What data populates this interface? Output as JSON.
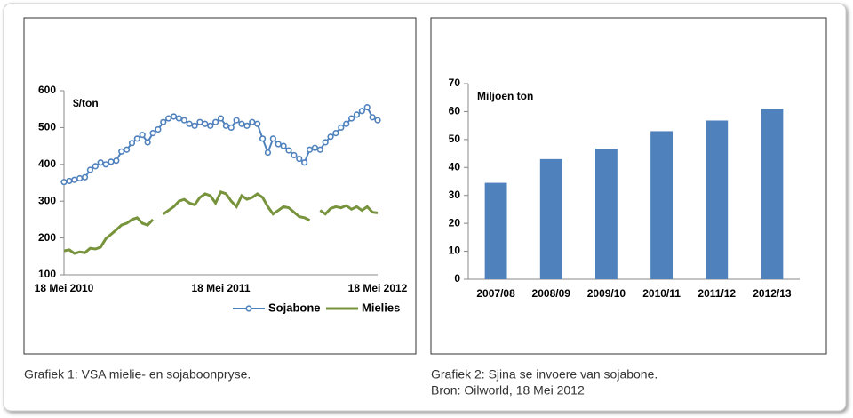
{
  "chart_data": [
    {
      "type": "line",
      "unit_label": "$/ton",
      "caption": "Grafiek 1: VSA mielie- en sojaboonpryse.",
      "categories": [
        "18 Mei 2010",
        null,
        null,
        null,
        null,
        null,
        null,
        null,
        null,
        null,
        null,
        null,
        null,
        null,
        null,
        null,
        null,
        null,
        null,
        null,
        null,
        null,
        null,
        null,
        null,
        null,
        null,
        null,
        null,
        null,
        "18 Mei 2011",
        null,
        null,
        null,
        null,
        null,
        null,
        null,
        null,
        null,
        null,
        null,
        null,
        null,
        null,
        null,
        null,
        null,
        null,
        null,
        null,
        null,
        null,
        null,
        null,
        null,
        null,
        null,
        null,
        null,
        "18 Mei 2012"
      ],
      "series": [
        {
          "name": "Sojabone",
          "color": "#4f81bd",
          "marker": true,
          "values": [
            352,
            355,
            358,
            362,
            365,
            385,
            395,
            405,
            400,
            407,
            410,
            435,
            440,
            458,
            470,
            480,
            460,
            485,
            495,
            515,
            525,
            530,
            525,
            520,
            510,
            505,
            515,
            510,
            505,
            515,
            525,
            505,
            500,
            520,
            510,
            505,
            515,
            510,
            470,
            432,
            470,
            455,
            450,
            438,
            425,
            415,
            405,
            440,
            445,
            440,
            460,
            475,
            485,
            500,
            510,
            525,
            535,
            545,
            555,
            528,
            520
          ]
        },
        {
          "name": "Mielies",
          "color": "#77933c",
          "marker": false,
          "values": [
            165,
            168,
            158,
            162,
            160,
            172,
            170,
            175,
            198,
            210,
            222,
            235,
            240,
            250,
            255,
            240,
            235,
            250,
            null,
            265,
            275,
            285,
            300,
            305,
            295,
            290,
            310,
            320,
            315,
            295,
            325,
            320,
            300,
            285,
            315,
            305,
            310,
            320,
            310,
            285,
            265,
            275,
            285,
            282,
            270,
            258,
            255,
            248,
            null,
            275,
            265,
            280,
            285,
            282,
            288,
            278,
            285,
            275,
            285,
            270,
            268
          ]
        }
      ],
      "ylim": [
        100,
        600
      ],
      "yticks": [
        100,
        200,
        300,
        400,
        500,
        600
      ],
      "grid": false,
      "legend": "bottom"
    },
    {
      "type": "bar",
      "unit_label": "Miljoen ton",
      "caption": "Grafiek 2: Sjina se invoere van sojabone.",
      "source": "Bron: Oilworld, 18 Mei 2012",
      "categories": [
        "2007/08",
        "2008/09",
        "2009/10",
        "2010/11",
        "2011/12",
        "2012/13"
      ],
      "values": [
        34.5,
        43,
        46.7,
        53,
        56.8,
        61
      ],
      "color": "#4f81bd",
      "ylim": [
        0,
        70
      ],
      "yticks": [
        0,
        10,
        20,
        30,
        40,
        50,
        60,
        70
      ],
      "grid": false
    }
  ]
}
